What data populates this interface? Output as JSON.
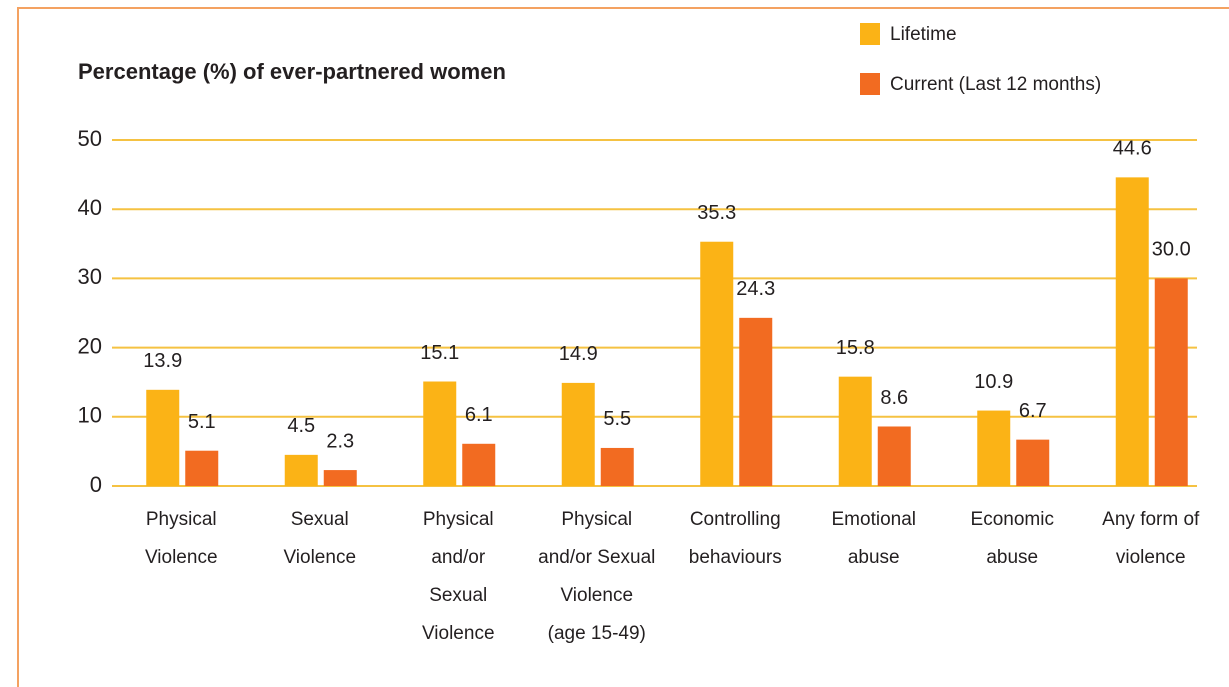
{
  "chart_data": {
    "type": "bar",
    "title": "Percentage (%) of ever-partnered women",
    "categories": [
      "Physical\nViolence",
      "Sexual\nViolence",
      "Physical\nand/or\nSexual\nViolence",
      "Physical\nand/or Sexual\nViolence\n(age 15-49)",
      "Controlling\nbehaviours",
      "Emotional\nabuse",
      "Economic\nabuse",
      "Any form of\nviolence"
    ],
    "series": [
      {
        "name": "Lifetime",
        "color": "#fbb316",
        "values": [
          13.9,
          4.5,
          15.1,
          14.9,
          35.3,
          15.8,
          10.9,
          44.6
        ],
        "value_labels": [
          "13.9",
          "4.5",
          "15.1",
          "14.9",
          "35.3",
          "15.8",
          "10.9",
          "44.6"
        ]
      },
      {
        "name": "Current (Last 12 months)",
        "color": "#f26b21",
        "values": [
          5.1,
          2.3,
          6.1,
          5.5,
          24.3,
          8.6,
          6.7,
          30.0
        ],
        "value_labels": [
          "5.1",
          "2.3",
          "6.1",
          "5.5",
          "24.3",
          "8.6",
          "6.7",
          "30.0"
        ]
      }
    ],
    "ylim": [
      0,
      50
    ],
    "yticks": [
      0,
      10,
      20,
      30,
      40,
      50
    ],
    "grid": true,
    "legend": "top-right"
  }
}
